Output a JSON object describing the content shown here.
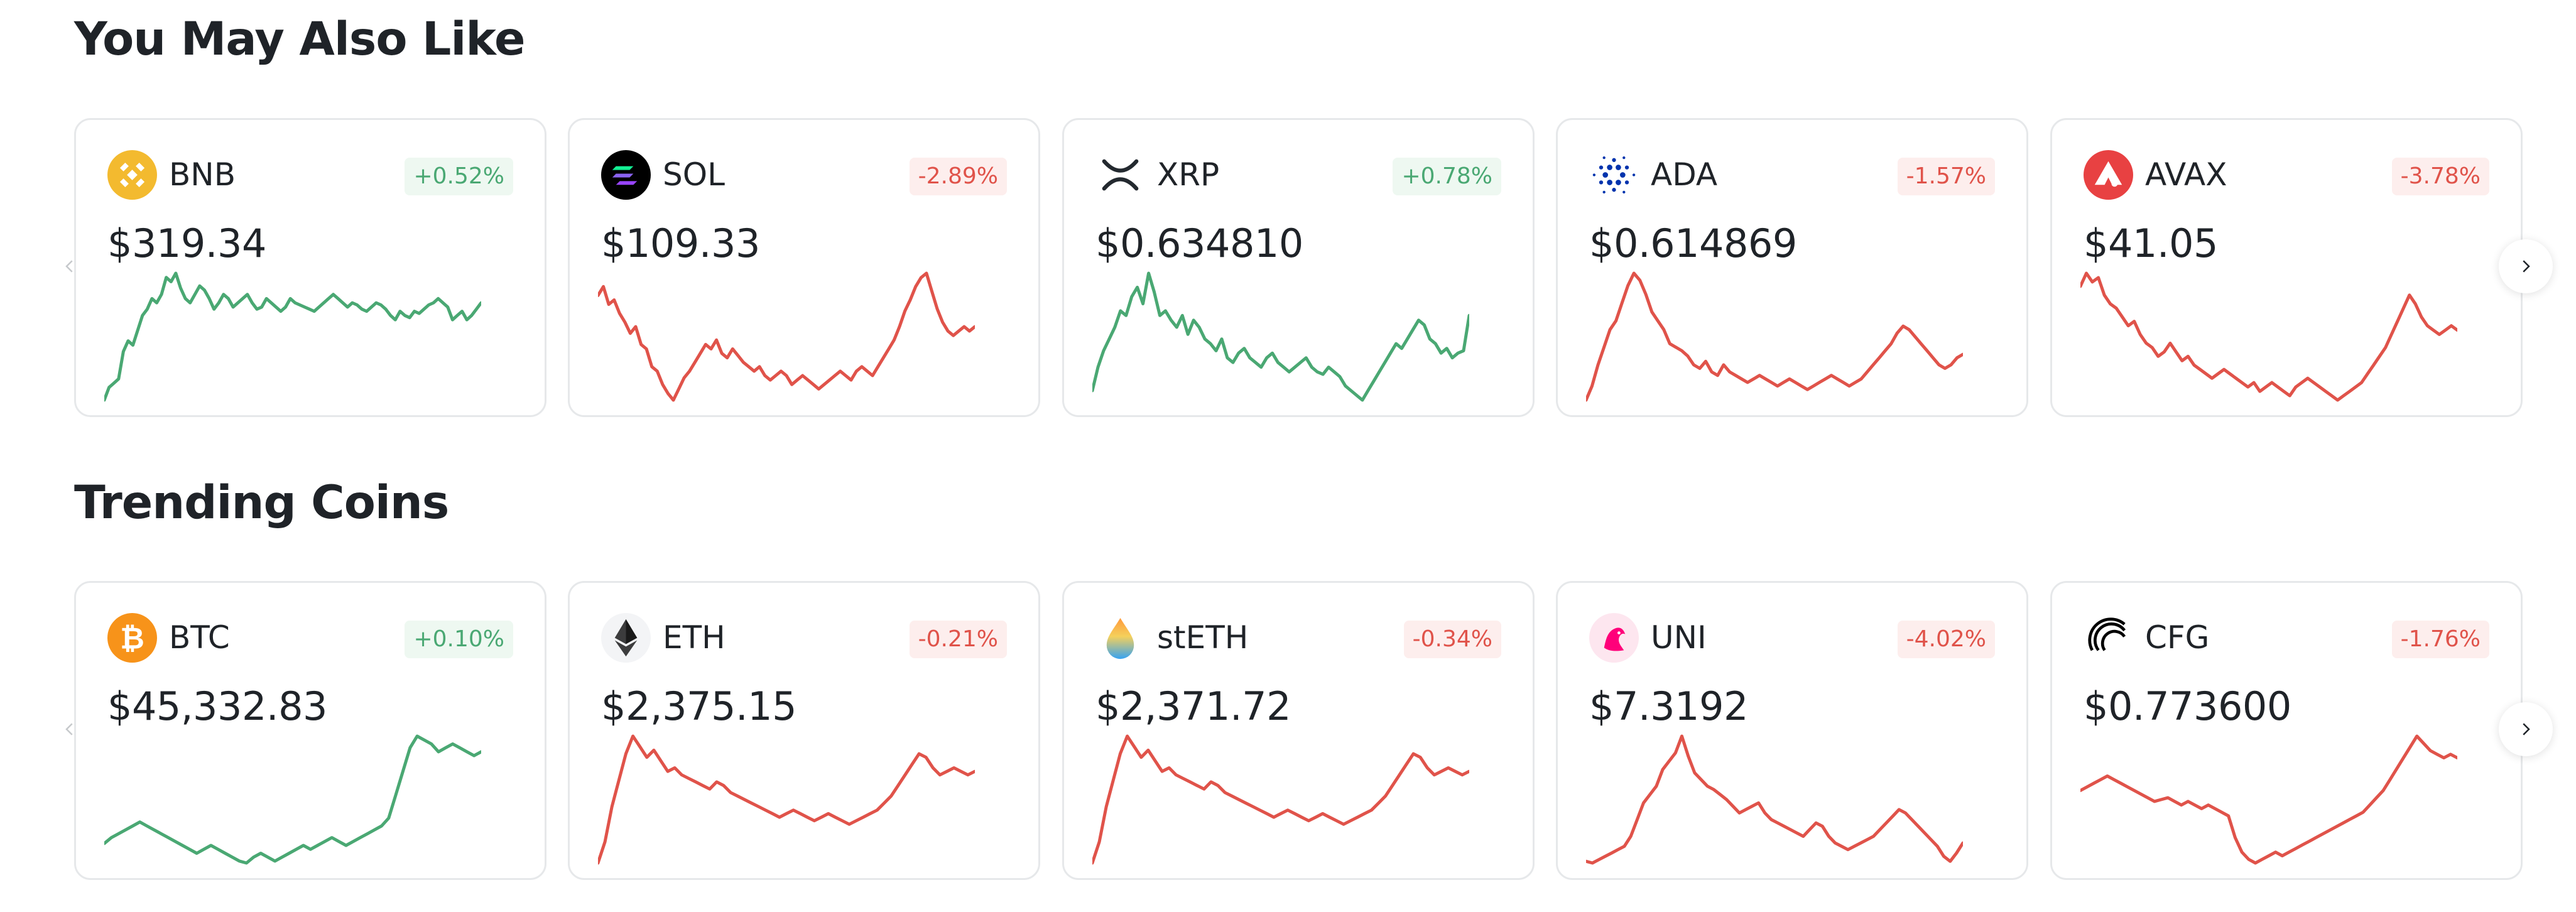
{
  "sections": [
    {
      "title": "You May Also Like",
      "coins": [
        {
          "symbol": "BNB",
          "change": "+0.52%",
          "direction": "up",
          "price": "$319.34",
          "icon": "bnb-icon",
          "icon_color": "#F3BA2F",
          "sparkline": [
            12,
            18,
            20,
            22,
            35,
            40,
            38,
            45,
            52,
            55,
            60,
            58,
            62,
            70,
            68,
            72,
            65,
            60,
            58,
            62,
            66,
            64,
            60,
            55,
            58,
            62,
            60,
            56,
            58,
            60,
            62,
            58,
            55,
            56,
            60,
            58,
            56,
            54,
            56,
            60,
            58,
            57,
            56,
            55,
            54,
            56,
            58,
            60,
            62,
            60,
            58,
            56,
            58,
            57,
            55,
            54,
            56,
            58,
            57,
            55,
            52,
            50,
            54,
            52,
            51,
            54,
            53,
            55,
            57,
            58,
            60,
            58,
            56,
            50,
            52,
            54,
            50,
            52,
            55,
            58
          ]
        },
        {
          "symbol": "SOL",
          "change": "-2.89%",
          "direction": "down",
          "price": "$109.33",
          "icon": "sol-icon",
          "icon_color": "#000000",
          "sparkline": [
            62,
            66,
            58,
            60,
            54,
            50,
            45,
            48,
            40,
            38,
            30,
            28,
            22,
            18,
            15,
            20,
            25,
            28,
            32,
            36,
            40,
            38,
            42,
            36,
            34,
            38,
            35,
            32,
            30,
            28,
            30,
            26,
            24,
            26,
            28,
            26,
            22,
            24,
            26,
            24,
            22,
            20,
            22,
            24,
            26,
            28,
            26,
            24,
            28,
            30,
            28,
            26,
            30,
            34,
            38,
            42,
            48,
            55,
            60,
            66,
            70,
            72,
            64,
            56,
            50,
            46,
            44,
            46,
            48,
            46,
            48
          ]
        },
        {
          "symbol": "XRP",
          "change": "+0.78%",
          "direction": "up",
          "price": "$0.634810",
          "icon": "xrp-icon",
          "icon_color": "#23292F",
          "sparkline": [
            28,
            38,
            45,
            50,
            55,
            62,
            60,
            68,
            72,
            65,
            78,
            70,
            60,
            62,
            58,
            55,
            60,
            52,
            58,
            55,
            50,
            48,
            45,
            50,
            42,
            40,
            44,
            46,
            42,
            40,
            38,
            42,
            44,
            40,
            38,
            36,
            38,
            40,
            42,
            38,
            36,
            35,
            38,
            36,
            34,
            30,
            28,
            26,
            24,
            28,
            32,
            36,
            40,
            44,
            48,
            46,
            50,
            54,
            58,
            56,
            50,
            48,
            44,
            46,
            42,
            44,
            45,
            60
          ]
        },
        {
          "symbol": "ADA",
          "change": "-1.57%",
          "direction": "down",
          "price": "$0.614869",
          "icon": "ada-icon",
          "icon_color": "#0033AD",
          "sparkline": [
            10,
            18,
            30,
            40,
            50,
            55,
            65,
            75,
            82,
            78,
            70,
            60,
            55,
            50,
            42,
            40,
            38,
            35,
            30,
            28,
            32,
            26,
            24,
            30,
            26,
            24,
            22,
            20,
            22,
            24,
            22,
            20,
            18,
            20,
            22,
            20,
            18,
            16,
            18,
            20,
            22,
            24,
            22,
            20,
            18,
            20,
            22,
            26,
            30,
            34,
            38,
            42,
            48,
            52,
            50,
            46,
            42,
            38,
            34,
            30,
            28,
            30,
            34,
            36
          ]
        },
        {
          "symbol": "AVAX",
          "change": "-3.78%",
          "direction": "down",
          "price": "$41.05",
          "icon": "avax-icon",
          "icon_color": "#E84142",
          "sparkline": [
            70,
            76,
            72,
            74,
            66,
            62,
            60,
            56,
            52,
            54,
            48,
            44,
            42,
            38,
            40,
            44,
            40,
            36,
            38,
            34,
            32,
            30,
            28,
            30,
            32,
            30,
            28,
            26,
            24,
            26,
            22,
            24,
            26,
            24,
            22,
            20,
            24,
            26,
            28,
            26,
            24,
            22,
            20,
            18,
            20,
            22,
            24,
            26,
            30,
            34,
            38,
            42,
            48,
            54,
            60,
            66,
            62,
            56,
            52,
            50,
            48,
            50,
            52,
            50
          ]
        }
      ]
    },
    {
      "title": "Trending Coins",
      "coins": [
        {
          "symbol": "BTC",
          "change": "+0.10%",
          "direction": "up",
          "price": "$45,332.83",
          "icon": "btc-icon",
          "icon_color": "#F7931A",
          "sparkline": [
            25,
            28,
            30,
            32,
            34,
            36,
            34,
            32,
            30,
            28,
            26,
            24,
            22,
            20,
            22,
            24,
            22,
            20,
            18,
            16,
            15,
            18,
            20,
            18,
            16,
            18,
            20,
            22,
            24,
            22,
            24,
            26,
            28,
            26,
            24,
            26,
            28,
            30,
            32,
            34,
            38,
            50,
            62,
            74,
            80,
            78,
            76,
            72,
            74,
            76,
            74,
            72,
            70,
            72
          ]
        },
        {
          "symbol": "ETH",
          "change": "-0.21%",
          "direction": "down",
          "price": "$2,375.15",
          "icon": "eth-icon",
          "icon_color": "#627EEA",
          "sparkline": [
            8,
            20,
            40,
            55,
            70,
            80,
            74,
            68,
            72,
            66,
            60,
            62,
            58,
            56,
            54,
            52,
            50,
            54,
            52,
            48,
            46,
            44,
            42,
            40,
            38,
            36,
            34,
            36,
            38,
            36,
            34,
            32,
            34,
            36,
            34,
            32,
            30,
            32,
            34,
            36,
            38,
            42,
            46,
            52,
            58,
            64,
            70,
            68,
            62,
            58,
            60,
            62,
            60,
            58,
            60
          ]
        },
        {
          "symbol": "stETH",
          "change": "-0.34%",
          "direction": "down",
          "price": "$2,371.72",
          "icon": "steth-icon",
          "icon_color": "#00A3FF",
          "sparkline": [
            8,
            20,
            40,
            55,
            70,
            80,
            74,
            68,
            72,
            66,
            60,
            62,
            58,
            56,
            54,
            52,
            50,
            54,
            52,
            48,
            46,
            44,
            42,
            40,
            38,
            36,
            34,
            36,
            38,
            36,
            34,
            32,
            34,
            36,
            34,
            32,
            30,
            32,
            34,
            36,
            38,
            42,
            46,
            52,
            58,
            64,
            70,
            68,
            62,
            58,
            60,
            62,
            60,
            58,
            60
          ]
        },
        {
          "symbol": "UNI",
          "change": "-4.02%",
          "direction": "down",
          "price": "$7.3192",
          "icon": "uni-icon",
          "icon_color": "#FF007A",
          "sparkline": [
            15,
            14,
            16,
            18,
            20,
            22,
            24,
            30,
            40,
            50,
            55,
            60,
            70,
            75,
            80,
            90,
            78,
            68,
            64,
            60,
            58,
            55,
            52,
            48,
            44,
            46,
            48,
            50,
            44,
            40,
            38,
            36,
            34,
            32,
            30,
            34,
            38,
            36,
            30,
            26,
            24,
            22,
            24,
            26,
            28,
            30,
            34,
            38,
            42,
            46,
            44,
            40,
            36,
            32,
            28,
            24,
            18,
            15,
            20,
            26
          ]
        },
        {
          "symbol": "CFG",
          "change": "-1.76%",
          "direction": "down",
          "price": "$0.773600",
          "icon": "cfg-icon",
          "icon_color": "#000000",
          "sparkline": [
            50,
            52,
            54,
            56,
            58,
            56,
            54,
            52,
            50,
            48,
            46,
            44,
            45,
            46,
            44,
            42,
            44,
            42,
            40,
            42,
            40,
            38,
            36,
            24,
            16,
            12,
            10,
            12,
            14,
            16,
            14,
            16,
            18,
            20,
            22,
            24,
            26,
            28,
            30,
            32,
            34,
            36,
            38,
            42,
            46,
            50,
            56,
            62,
            68,
            74,
            80,
            76,
            72,
            70,
            68,
            70,
            68
          ]
        }
      ]
    }
  ],
  "nav": {
    "prev_label": "",
    "next_label": ""
  },
  "colors": {
    "up": "#4aa873",
    "down": "#e0534a"
  }
}
